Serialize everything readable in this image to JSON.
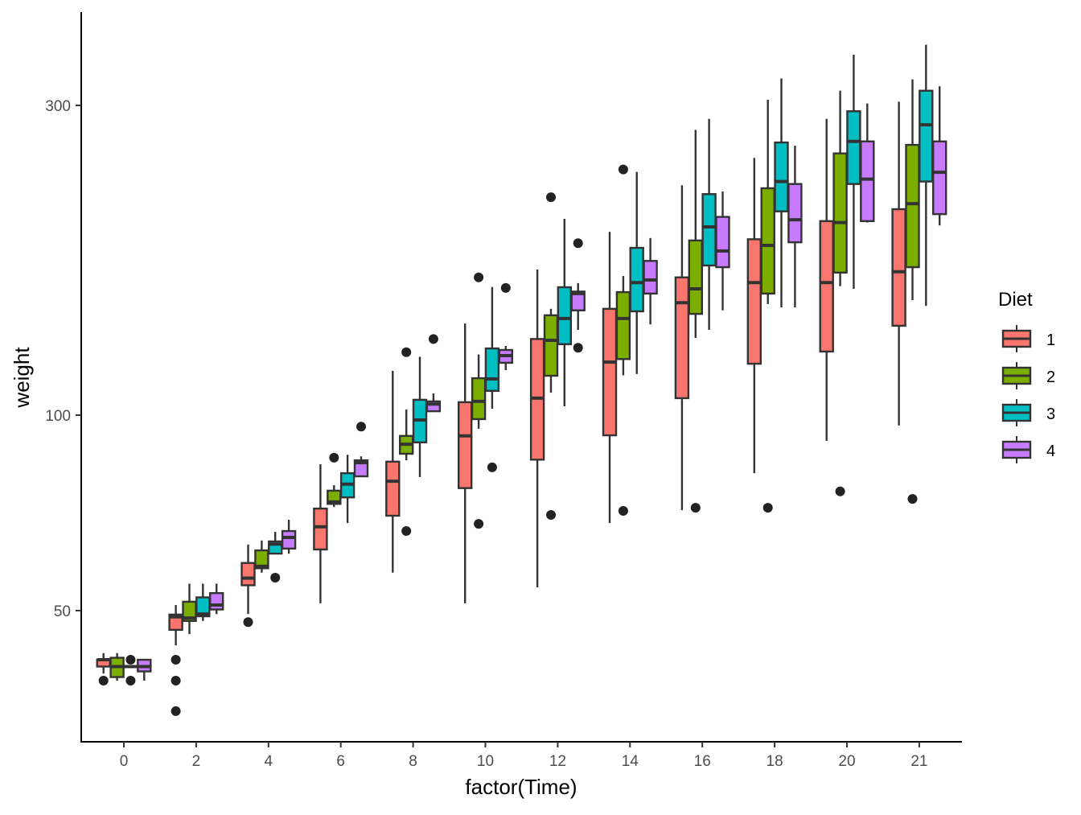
{
  "chart_data": {
    "type": "boxplot",
    "title": "",
    "xlabel": "factor(Time)",
    "ylabel": "weight",
    "y_scale": "log10",
    "ylim": [
      31.4,
      418
    ],
    "y_ticks": [
      50,
      100,
      300
    ],
    "y_tick_labels": [
      "50",
      "100",
      "300"
    ],
    "categories": [
      "0",
      "2",
      "4",
      "6",
      "8",
      "10",
      "12",
      "14",
      "16",
      "18",
      "20",
      "21"
    ],
    "legend": {
      "title": "Diet",
      "position": "right",
      "entries": [
        "1",
        "2",
        "3",
        "4"
      ]
    },
    "colors": [
      "#F8766D",
      "#7CAE00",
      "#00BFC4",
      "#C77CFF"
    ],
    "series": [
      {
        "name": "1",
        "boxes": [
          {
            "lo": 40,
            "q1": 41,
            "med": 42,
            "q3": 42,
            "hi": 43,
            "out": [
              39
            ]
          },
          {
            "lo": 44.2,
            "q1": 46.7,
            "med": 48.9,
            "q3": 49.3,
            "hi": 51,
            "out": [
              42,
              39,
              35
            ]
          },
          {
            "lo": 49.4,
            "q1": 54.7,
            "med": 56.1,
            "q3": 59.2,
            "hi": 63.2,
            "out": [
              48
            ]
          },
          {
            "lo": 51.3,
            "q1": 62.1,
            "med": 67.3,
            "q3": 71.8,
            "hi": 84,
            "out": []
          },
          {
            "lo": 57.2,
            "q1": 70,
            "med": 79.1,
            "q3": 84.8,
            "hi": 117,
            "out": []
          },
          {
            "lo": 51.3,
            "q1": 77.2,
            "med": 92.9,
            "q3": 104.7,
            "hi": 138.4,
            "out": []
          },
          {
            "lo": 54.3,
            "q1": 85.4,
            "med": 106.2,
            "q3": 131,
            "hi": 167.6,
            "out": []
          },
          {
            "lo": 68.2,
            "q1": 93.1,
            "med": 120.7,
            "q3": 145.8,
            "hi": 191.6,
            "out": []
          },
          {
            "lo": 71.4,
            "q1": 106.2,
            "med": 149,
            "q3": 163,
            "hi": 226,
            "out": []
          },
          {
            "lo": 81.4,
            "q1": 120,
            "med": 160,
            "q3": 186.6,
            "hi": 249,
            "out": []
          },
          {
            "lo": 91.3,
            "q1": 125.3,
            "med": 160,
            "q3": 199,
            "hi": 286,
            "out": []
          },
          {
            "lo": 96.4,
            "q1": 137.3,
            "med": 166.3,
            "q3": 207.6,
            "hi": 304,
            "out": []
          }
        ]
      },
      {
        "name": "2",
        "boxes": [
          {
            "lo": 39,
            "q1": 39.5,
            "med": 41,
            "q3": 42.3,
            "hi": 43,
            "out": []
          },
          {
            "lo": 46,
            "q1": 48.2,
            "med": 48.7,
            "q3": 51.6,
            "hi": 55,
            "out": []
          },
          {
            "lo": 57.2,
            "q1": 58.1,
            "med": 58.5,
            "q3": 61.9,
            "hi": 64.1,
            "out": []
          },
          {
            "lo": 72.2,
            "q1": 73,
            "med": 73.5,
            "q3": 76.5,
            "hi": 78,
            "out": [
              86
            ]
          },
          {
            "lo": 85.2,
            "q1": 87.2,
            "med": 90.2,
            "q3": 92.9,
            "hi": 102,
            "out": [
              125,
              66.3
            ]
          },
          {
            "lo": 95.3,
            "q1": 98.6,
            "med": 105,
            "q3": 114,
            "hi": 124,
            "out": [
              163,
              68
            ]
          },
          {
            "lo": 108.3,
            "q1": 115,
            "med": 130.4,
            "q3": 142.5,
            "hi": 145.8,
            "out": [
              216.6,
              70.2
            ]
          },
          {
            "lo": 115.2,
            "q1": 122,
            "med": 140.9,
            "q3": 154.7,
            "hi": 163.8,
            "out": [
              239,
              71.2
            ]
          },
          {
            "lo": 131.5,
            "q1": 143.2,
            "med": 156.5,
            "q3": 185.8,
            "hi": 275,
            "out": [
              72
            ]
          },
          {
            "lo": 148.3,
            "q1": 153.9,
            "med": 182.6,
            "q3": 223.6,
            "hi": 306,
            "out": [
              72
            ]
          },
          {
            "lo": 158,
            "q1": 165.8,
            "med": 198,
            "q3": 253,
            "hi": 316,
            "out": [
              76.3
            ]
          },
          {
            "lo": 150.4,
            "q1": 169,
            "med": 211.7,
            "q3": 260.8,
            "hi": 329,
            "out": [
              74.3
            ]
          }
        ]
      },
      {
        "name": "3",
        "boxes": [
          {
            "lo": 41,
            "q1": 41,
            "med": 41,
            "q3": 41,
            "hi": 41,
            "out": [
              42,
              39
            ]
          },
          {
            "lo": 48.2,
            "q1": 49,
            "med": 49.4,
            "q3": 52.4,
            "hi": 55,
            "out": []
          },
          {
            "lo": 61.2,
            "q1": 61.2,
            "med": 63.3,
            "q3": 63.9,
            "hi": 66.1,
            "out": [
              56.2
            ]
          },
          {
            "lo": 68.2,
            "q1": 74.7,
            "med": 78.3,
            "q3": 81.4,
            "hi": 86.9,
            "out": []
          },
          {
            "lo": 80.3,
            "q1": 90.8,
            "med": 98.3,
            "q3": 105.6,
            "hi": 123,
            "out": []
          },
          {
            "lo": 102.3,
            "q1": 109,
            "med": 113.7,
            "q3": 126.7,
            "hi": 157.5,
            "out": [
              83.1
            ]
          },
          {
            "lo": 103.2,
            "q1": 128.6,
            "med": 140.9,
            "q3": 157.4,
            "hi": 200.6,
            "out": []
          },
          {
            "lo": 115.7,
            "q1": 144.5,
            "med": 160,
            "q3": 181,
            "hi": 237,
            "out": []
          },
          {
            "lo": 135.3,
            "q1": 170,
            "med": 195,
            "q3": 219,
            "hi": 286,
            "out": []
          },
          {
            "lo": 146.5,
            "q1": 206,
            "med": 229,
            "q3": 263,
            "hi": 330,
            "out": []
          },
          {
            "lo": 156.5,
            "q1": 227,
            "med": 264,
            "q3": 293.8,
            "hi": 359,
            "out": []
          },
          {
            "lo": 147.3,
            "q1": 229,
            "med": 280,
            "q3": 316,
            "hi": 372,
            "out": []
          }
        ]
      },
      {
        "name": "4",
        "boxes": [
          {
            "lo": 39,
            "q1": 40.3,
            "med": 41,
            "q3": 42,
            "hi": 42,
            "out": []
          },
          {
            "lo": 49.4,
            "q1": 50.2,
            "med": 51,
            "q3": 53.2,
            "hi": 55,
            "out": []
          },
          {
            "lo": 61.2,
            "q1": 62.3,
            "med": 64.8,
            "q3": 66.3,
            "hi": 69,
            "out": []
          },
          {
            "lo": 80.3,
            "q1": 80.5,
            "med": 84.5,
            "q3": 85.2,
            "hi": 86.4,
            "out": [
              96
            ]
          },
          {
            "lo": 101.4,
            "q1": 101.4,
            "med": 104,
            "q3": 105,
            "hi": 108,
            "out": [
              131
            ]
          },
          {
            "lo": 117.3,
            "q1": 120.4,
            "med": 123.5,
            "q3": 126,
            "hi": 127.8,
            "out": [
              157
            ]
          },
          {
            "lo": 135.3,
            "q1": 145,
            "med": 153.9,
            "q3": 155,
            "hi": 159.7,
            "out": [
              184,
              127
            ]
          },
          {
            "lo": 138,
            "q1": 153.9,
            "med": 161.5,
            "q3": 172.8,
            "hi": 187.4,
            "out": []
          },
          {
            "lo": 145,
            "q1": 169,
            "med": 179,
            "q3": 202,
            "hi": 221,
            "out": []
          },
          {
            "lo": 146.5,
            "q1": 184.6,
            "med": 200,
            "q3": 227,
            "hi": 260,
            "out": []
          },
          {
            "lo": 198,
            "q1": 199,
            "med": 231,
            "q3": 264,
            "hi": 302,
            "out": []
          },
          {
            "lo": 196,
            "q1": 204,
            "med": 236.6,
            "q3": 264,
            "hi": 321,
            "out": []
          }
        ]
      }
    ]
  }
}
